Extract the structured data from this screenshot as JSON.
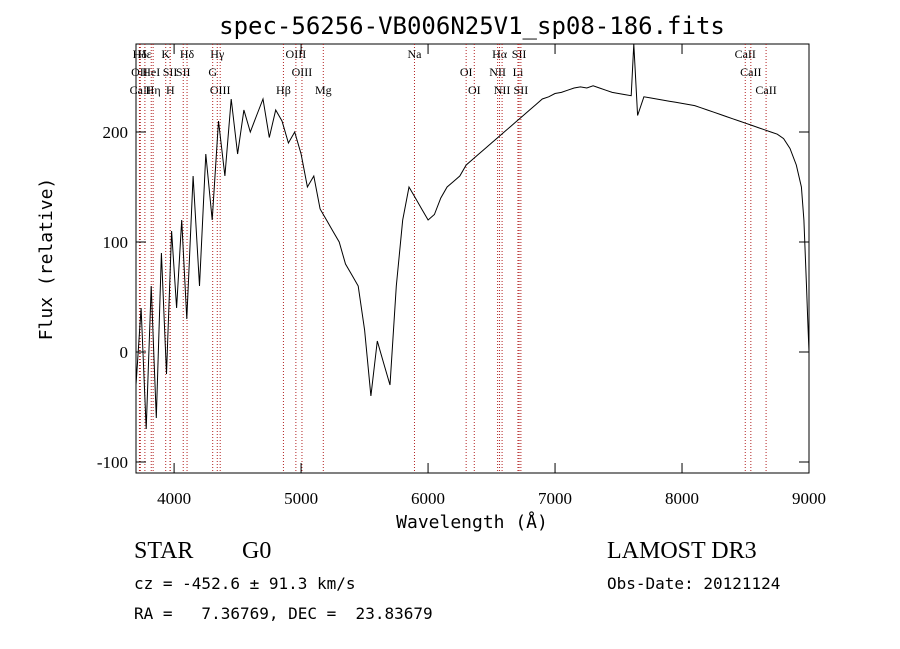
{
  "chart_data": {
    "type": "line",
    "title": "spec-56256-VB006N25V1_sp08-186.fits",
    "xlabel": "Wavelength (Å)",
    "ylabel": "Flux (relative)",
    "xlim": [
      3700,
      9000
    ],
    "ylim": [
      -110,
      280
    ],
    "xticks": [
      4000,
      5000,
      6000,
      7000,
      8000,
      9000
    ],
    "yticks": [
      -100,
      0,
      100,
      200
    ],
    "series": [
      {
        "name": "spectrum",
        "x": [
          3700,
          3740,
          3780,
          3820,
          3860,
          3900,
          3940,
          3980,
          4020,
          4060,
          4100,
          4150,
          4200,
          4250,
          4300,
          4350,
          4400,
          4450,
          4500,
          4550,
          4600,
          4650,
          4700,
          4750,
          4800,
          4850,
          4900,
          4950,
          5000,
          5050,
          5100,
          5150,
          5200,
          5250,
          5300,
          5350,
          5400,
          5450,
          5500,
          5550,
          5600,
          5650,
          5700,
          5750,
          5800,
          5850,
          5900,
          5950,
          6000,
          6050,
          6100,
          6150,
          6200,
          6250,
          6300,
          6350,
          6400,
          6450,
          6500,
          6550,
          6600,
          6650,
          6700,
          6750,
          6800,
          6850,
          6900,
          6950,
          7000,
          7050,
          7100,
          7150,
          7200,
          7250,
          7300,
          7350,
          7400,
          7450,
          7500,
          7550,
          7600,
          7620,
          7650,
          7700,
          7750,
          7800,
          7850,
          7900,
          7950,
          8000,
          8050,
          8100,
          8150,
          8200,
          8250,
          8300,
          8350,
          8400,
          8450,
          8500,
          8550,
          8600,
          8650,
          8700,
          8750,
          8800,
          8850,
          8900,
          8940,
          8960,
          8980,
          8990,
          9000
        ],
        "y": [
          -30,
          40,
          -70,
          60,
          -60,
          90,
          -20,
          110,
          40,
          120,
          30,
          160,
          60,
          180,
          120,
          210,
          160,
          230,
          180,
          220,
          200,
          215,
          230,
          195,
          220,
          210,
          190,
          200,
          180,
          150,
          160,
          130,
          120,
          110,
          100,
          80,
          70,
          60,
          20,
          -40,
          10,
          -10,
          -30,
          60,
          120,
          150,
          140,
          130,
          120,
          125,
          140,
          150,
          155,
          160,
          170,
          175,
          180,
          185,
          190,
          195,
          200,
          205,
          210,
          215,
          220,
          225,
          230,
          232,
          235,
          236,
          238,
          240,
          241,
          240,
          242,
          240,
          238,
          236,
          235,
          234,
          233,
          280,
          215,
          232,
          231,
          230,
          229,
          228,
          227,
          226,
          225,
          224,
          222,
          220,
          218,
          216,
          214,
          212,
          210,
          208,
          206,
          204,
          202,
          200,
          198,
          194,
          185,
          170,
          150,
          120,
          60,
          30,
          0
        ]
      }
    ],
    "spectral_lines": [
      {
        "label": "Hδ",
        "x": 3730
      },
      {
        "label": "OII",
        "x": 3727
      },
      {
        "label": "CaII",
        "x": 3734
      },
      {
        "label": "Hε",
        "x": 3770
      },
      {
        "label": "HeI",
        "x": 3820
      },
      {
        "label": "Hη",
        "x": 3835
      },
      {
        "label": "K",
        "x": 3934
      },
      {
        "label": "SII",
        "x": 3968
      },
      {
        "label": "H",
        "x": 3970
      },
      {
        "label": "Hδ",
        "x": 4102
      },
      {
        "label": "SII",
        "x": 4072
      },
      {
        "label": "OIII",
        "x": 4363
      },
      {
        "label": "Hγ",
        "x": 4340
      },
      {
        "label": "G",
        "x": 4304
      },
      {
        "label": "Hβ",
        "x": 4861
      },
      {
        "label": "OIII",
        "x": 4959
      },
      {
        "label": "OIII",
        "x": 5007
      },
      {
        "label": "Mg",
        "x": 5175
      },
      {
        "label": "Na",
        "x": 5893
      },
      {
        "label": "OI",
        "x": 6300
      },
      {
        "label": "OI",
        "x": 6364
      },
      {
        "label": "Hα",
        "x": 6563
      },
      {
        "label": "NII",
        "x": 6548
      },
      {
        "label": "NII",
        "x": 6583
      },
      {
        "label": "SII",
        "x": 6717
      },
      {
        "label": "Li",
        "x": 6708
      },
      {
        "label": "SII",
        "x": 6731
      },
      {
        "label": "CaII",
        "x": 8498
      },
      {
        "label": "CaII",
        "x": 8542
      },
      {
        "label": "CaII",
        "x": 8662
      }
    ]
  },
  "info": {
    "class_label": "STAR",
    "subclass": "G0",
    "survey": "LAMOST DR3",
    "cz_line": "cz = -452.6 ± 91.3 km/s",
    "obs_date_line": "Obs-Date: 20121124",
    "coords_line": "RA =   7.36769, DEC =  23.83679"
  },
  "colors": {
    "spectrum": "#000000",
    "line_marker": "#b22222",
    "axis": "#000000"
  }
}
